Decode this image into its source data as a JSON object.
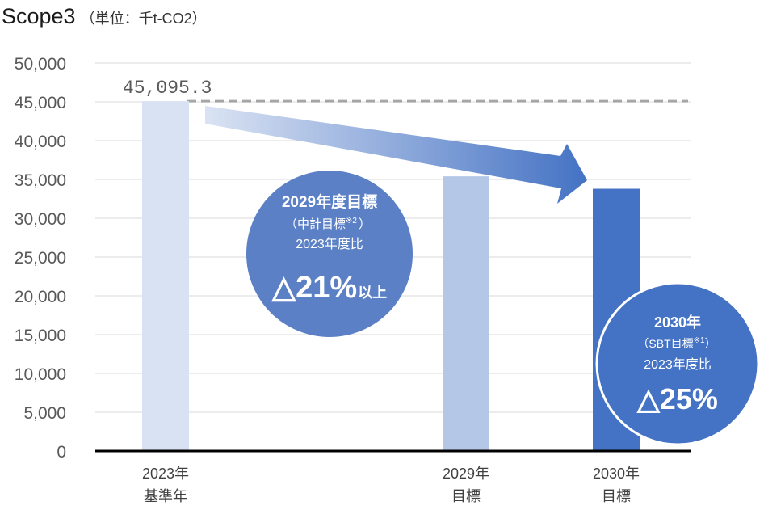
{
  "heading": {
    "title": "Scope3",
    "unit": "（単位：千t-CO2）"
  },
  "chart_data": {
    "type": "bar",
    "categories": [
      [
        "2023年",
        "基準年"
      ],
      [
        "2029年",
        "目標"
      ],
      [
        "2030年",
        "目標"
      ]
    ],
    "values": [
      45095.3,
      35400,
      33800
    ],
    "bar_colors": [
      "#d9e2f3",
      "#b4c7e7",
      "#4472c4"
    ],
    "data_labels": [
      "45,095.3",
      "",
      ""
    ],
    "ylim": [
      0,
      50000
    ],
    "yticks": [
      0,
      5000,
      10000,
      15000,
      20000,
      25000,
      30000,
      35000,
      40000,
      45000,
      50000
    ],
    "ytick_labels": [
      "0",
      "5,000",
      "10,000",
      "15,000",
      "20,000",
      "25,000",
      "30,000",
      "35,000",
      "40,000",
      "45,000",
      "50,000"
    ],
    "grid": true,
    "reference_line": {
      "value": 45095.3,
      "style": "dashed",
      "color": "#a6a6a6"
    },
    "trend_arrow": {
      "from_category": 0,
      "to_category": 2,
      "color_start": "#dae3f3",
      "color_end": "#4472c4"
    },
    "annotations": {
      "target_2029": {
        "title": "2029年度目標",
        "sub1_open": "（中計目標",
        "sub1_note": "※2",
        "sub1_close": "）",
        "sub2": "2023年度比",
        "value": "△21%",
        "suffix": "以上",
        "color": "#5b80c6"
      },
      "target_2030": {
        "title": "2030年",
        "sub1_open": "（SBT目標",
        "sub1_note": "※1",
        "sub1_close": "）",
        "sub2": "2023年度比",
        "value": "△25%",
        "color": "#4472c4"
      }
    }
  }
}
